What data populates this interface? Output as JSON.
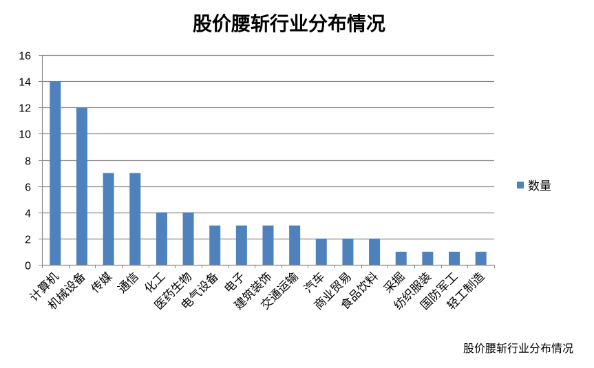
{
  "chart_data": {
    "type": "bar",
    "title": "股价腰斩行业分布情况",
    "caption": "股价腰斩行业分布情况",
    "categories": [
      "计算机",
      "机械设备",
      "传媒",
      "通信",
      "化工",
      "医药生物",
      "电气设备",
      "电子",
      "建筑装饰",
      "交通运输",
      "汽车",
      "商业贸易",
      "食品饮料",
      "采掘",
      "纺织服装",
      "国防军工",
      "轻工制造"
    ],
    "series": [
      {
        "name": "数量",
        "values": [
          14,
          12,
          7,
          7,
          4,
          4,
          3,
          3,
          3,
          3,
          2,
          2,
          2,
          1,
          1,
          1,
          1
        ],
        "color": "#4F81BD"
      }
    ],
    "xlabel": "",
    "ylabel": "",
    "ylim": [
      0,
      16
    ],
    "yticks": [
      "0",
      "2",
      "4",
      "6",
      "8",
      "10",
      "12",
      "14",
      "16"
    ],
    "grid": true,
    "legend": "right",
    "gridline_color": "#868686"
  }
}
